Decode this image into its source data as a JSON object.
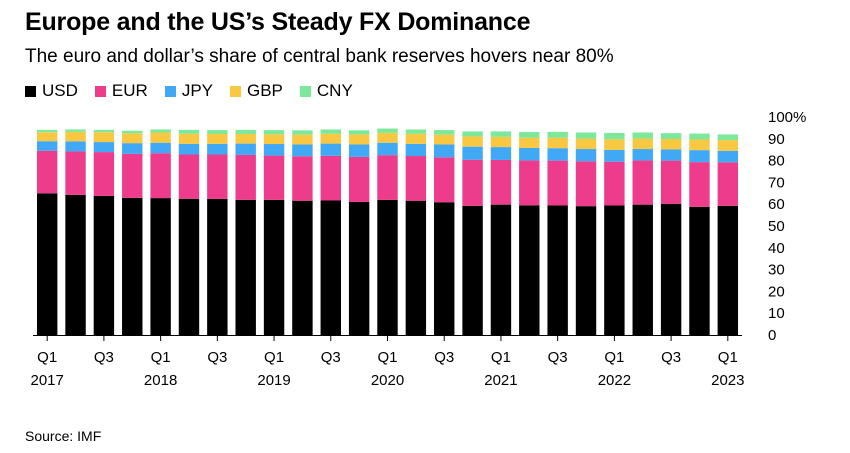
{
  "title": "Europe and the US’s Steady FX Dominance",
  "subtitle": "The euro and dollar’s share of central bank reserves hovers near 80%",
  "source": "Source: IMF",
  "colors": {
    "USD": "#000000",
    "EUR": "#ee3c8c",
    "JPY": "#41a8f5",
    "GBP": "#f9c842",
    "CNY": "#7ee89a"
  },
  "chart_data": {
    "type": "bar",
    "stacked": true,
    "categories": [
      "Q1 2017",
      "Q2 2017",
      "Q3 2017",
      "Q4 2017",
      "Q1 2018",
      "Q2 2018",
      "Q3 2018",
      "Q4 2018",
      "Q1 2019",
      "Q2 2019",
      "Q3 2019",
      "Q4 2019",
      "Q1 2020",
      "Q2 2020",
      "Q3 2020",
      "Q4 2020",
      "Q1 2021",
      "Q2 2021",
      "Q3 2021",
      "Q4 2021",
      "Q1 2022",
      "Q2 2022",
      "Q3 2022",
      "Q4 2022",
      "Q1 2023"
    ],
    "x_tick_labels": [
      {
        "index": 0,
        "q": "Q1",
        "year": "2017"
      },
      {
        "index": 2,
        "q": "Q3",
        "year": ""
      },
      {
        "index": 4,
        "q": "Q1",
        "year": "2018"
      },
      {
        "index": 6,
        "q": "Q3",
        "year": ""
      },
      {
        "index": 8,
        "q": "Q1",
        "year": "2019"
      },
      {
        "index": 10,
        "q": "Q3",
        "year": ""
      },
      {
        "index": 12,
        "q": "Q1",
        "year": "2020"
      },
      {
        "index": 14,
        "q": "Q3",
        "year": ""
      },
      {
        "index": 16,
        "q": "Q1",
        "year": "2021"
      },
      {
        "index": 18,
        "q": "Q3",
        "year": ""
      },
      {
        "index": 20,
        "q": "Q1",
        "year": "2022"
      },
      {
        "index": 22,
        "q": "Q3",
        "year": ""
      },
      {
        "index": 24,
        "q": "Q1",
        "year": "2023"
      }
    ],
    "series": [
      {
        "name": "USD",
        "values": [
          65.0,
          64.3,
          63.8,
          62.9,
          62.8,
          62.5,
          62.4,
          62.0,
          62.0,
          61.6,
          61.7,
          61.0,
          62.0,
          61.6,
          60.9,
          59.2,
          59.8,
          59.5,
          59.4,
          59.1,
          59.4,
          59.8,
          60.2,
          58.8,
          59.2
        ]
      },
      {
        "name": "EUR",
        "values": [
          19.5,
          19.9,
          20.1,
          20.2,
          20.6,
          20.3,
          20.4,
          20.6,
          20.3,
          20.4,
          20.5,
          20.7,
          20.5,
          20.5,
          20.6,
          21.2,
          20.5,
          20.6,
          20.6,
          20.6,
          20.1,
          20.3,
          19.8,
          20.5,
          20.0
        ]
      },
      {
        "name": "JPY",
        "values": [
          4.4,
          4.6,
          4.6,
          4.9,
          4.8,
          4.9,
          4.9,
          5.2,
          5.3,
          5.4,
          5.6,
          5.7,
          5.7,
          5.6,
          5.9,
          6.0,
          5.9,
          5.7,
          5.7,
          5.6,
          5.4,
          5.2,
          5.1,
          5.5,
          5.3
        ]
      },
      {
        "name": "GBP",
        "values": [
          4.1,
          4.4,
          4.5,
          4.5,
          4.7,
          4.6,
          4.5,
          4.4,
          4.5,
          4.5,
          4.5,
          4.6,
          4.5,
          4.6,
          4.5,
          4.7,
          4.7,
          4.7,
          4.8,
          4.8,
          4.9,
          4.8,
          4.8,
          4.9,
          4.9
        ]
      },
      {
        "name": "CNY",
        "values": [
          1.1,
          1.1,
          1.1,
          1.2,
          1.4,
          1.8,
          1.8,
          1.9,
          1.9,
          2.0,
          2.0,
          1.9,
          2.0,
          2.0,
          2.1,
          2.3,
          2.5,
          2.6,
          2.7,
          2.8,
          2.9,
          2.8,
          2.7,
          2.7,
          2.6
        ]
      }
    ],
    "y_ticks": [
      {
        "value": 0,
        "label": "0"
      },
      {
        "value": 10,
        "label": "10"
      },
      {
        "value": 20,
        "label": "20"
      },
      {
        "value": 30,
        "label": "30"
      },
      {
        "value": 40,
        "label": "40"
      },
      {
        "value": 50,
        "label": "50"
      },
      {
        "value": 60,
        "label": "60"
      },
      {
        "value": 70,
        "label": "70"
      },
      {
        "value": 80,
        "label": "80"
      },
      {
        "value": 90,
        "label": "90"
      },
      {
        "value": 100,
        "label": "100%"
      }
    ],
    "ylim": [
      0,
      100
    ],
    "grid": false,
    "legend_position": "top-left"
  }
}
